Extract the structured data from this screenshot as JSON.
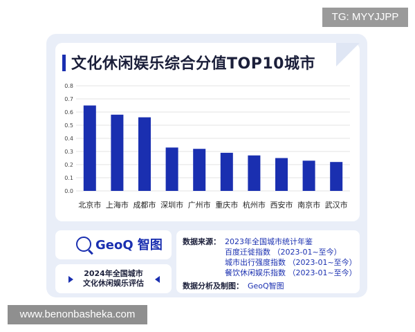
{
  "watermark_top": "TG: MYYJJPP",
  "watermark_bottom": "www.benonbasheka.com",
  "title": "文化休闲娱乐综合分值TOP10城市",
  "chart_data": {
    "type": "bar",
    "title": "文化休闲娱乐综合分值TOP10城市",
    "categories": [
      "北京市",
      "上海市",
      "成都市",
      "深圳市",
      "广州市",
      "重庆市",
      "杭州市",
      "西安市",
      "南京市",
      "武汉市"
    ],
    "values": [
      0.65,
      0.58,
      0.56,
      0.33,
      0.32,
      0.29,
      0.27,
      0.25,
      0.23,
      0.22
    ],
    "ylim": [
      0,
      0.8
    ],
    "yticks": [
      "0.0",
      "0.1",
      "0.2",
      "0.3",
      "0.4",
      "0.5",
      "0.6",
      "0.7",
      "0.8"
    ],
    "xlabel": "",
    "ylabel": "",
    "grid": true,
    "bar_color": "#1a2fb0"
  },
  "logo": {
    "name": "GeoQ 智图"
  },
  "evaluation": {
    "line1": "2024年全国城市",
    "line2": "文化休闲娱乐评估"
  },
  "sources": {
    "label": "数据来源：",
    "items": [
      "2023年全国城市统计年鉴",
      "百度迁徙指数 （2023-01~至今）",
      "城市出行强度指数 （2023-01~至今）",
      "餐饮休闲娱乐指数 （2023-01~至今）"
    ],
    "analysis_label": "数据分析及制图：",
    "analysis_value": "GeoQ智图"
  }
}
